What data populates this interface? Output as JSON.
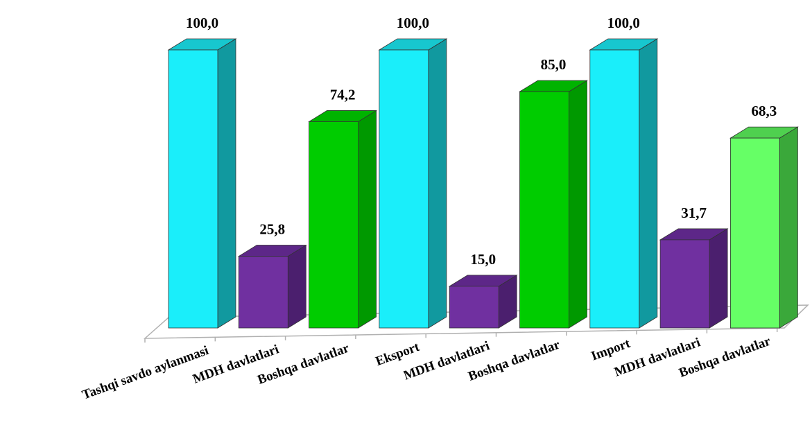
{
  "chart_data": {
    "type": "bar",
    "categories": [
      "Tashqi savdo aylanmasi",
      "MDH davlatlari",
      "Boshqa davlatlar",
      "Eksport",
      "MDH davlatlari",
      "Boshqa davlatlar",
      "Import",
      "MDH davlatlari",
      "Boshqa davlatlar"
    ],
    "values": [
      100.0,
      25.8,
      74.2,
      100.0,
      15.0,
      85.0,
      100.0,
      31.7,
      68.3
    ],
    "value_labels": [
      "100,0",
      "25,8",
      "74,2",
      "100,0",
      "15,0",
      "85,0",
      "100,0",
      "31,7",
      "68,3"
    ],
    "bar_colors": [
      "#1aeefa",
      "#7030a0",
      "#00cc00",
      "#1aeefa",
      "#7030a0",
      "#00cc00",
      "#1aeefa",
      "#7030a0",
      "#66ff66"
    ],
    "side_colors": [
      "#11999f",
      "#4b1f6e",
      "#009900",
      "#11999f",
      "#4b1f6e",
      "#009900",
      "#11999f",
      "#4b1f6e",
      "#3aa83a"
    ],
    "top_colors": [
      "#17c7cf",
      "#5d2788",
      "#00b300",
      "#17c7cf",
      "#5d2788",
      "#00b300",
      "#17c7cf",
      "#5d2788",
      "#4fd04f"
    ],
    "ylim": [
      0,
      100
    ],
    "style": "3d-column",
    "grid": false,
    "legend": "none",
    "title": "",
    "xlabel": "",
    "ylabel": ""
  }
}
